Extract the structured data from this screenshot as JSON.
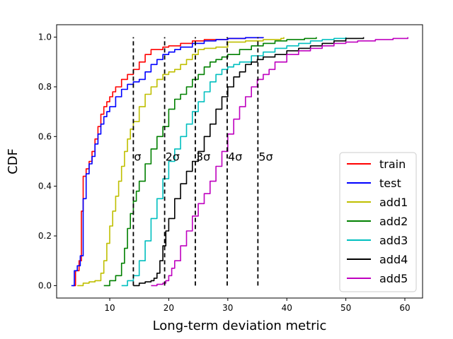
{
  "chart_data": {
    "type": "line",
    "title": "",
    "xlabel": "Long-term deviation metric",
    "ylabel": "CDF",
    "xlim": [
      1.0,
      63.0
    ],
    "ylim": [
      -0.05,
      1.05
    ],
    "x_ticks": [
      10,
      20,
      30,
      40,
      50,
      60
    ],
    "y_ticks": [
      0.0,
      0.2,
      0.4,
      0.6,
      0.8,
      1.0
    ],
    "x_tick_labels": [
      "10",
      "20",
      "30",
      "40",
      "50",
      "60"
    ],
    "y_tick_labels": [
      "0.0",
      "0.2",
      "0.4",
      "0.6",
      "0.8",
      "1.0"
    ],
    "grid": false,
    "legend_position": "lower-right",
    "thresholds": [
      {
        "x": 14.0,
        "label": "σ"
      },
      {
        "x": 19.3,
        "label": "2σ"
      },
      {
        "x": 24.5,
        "label": "3σ"
      },
      {
        "x": 29.9,
        "label": "4σ"
      },
      {
        "x": 35.1,
        "label": "5σ"
      }
    ],
    "threshold_label_y": 0.52,
    "series": [
      {
        "name": "train",
        "color": "#ff0000",
        "x": [
          3.8,
          4.2,
          4.8,
          5.2,
          5.5,
          6.0,
          6.5,
          7.0,
          7.5,
          8.0,
          8.5,
          9.0,
          9.5,
          10.0,
          10.5,
          11.0,
          12.0,
          13.0,
          14.0,
          15.0,
          16.0,
          17.0,
          18.0,
          19.0,
          20.0,
          22.0,
          24.0,
          26.0,
          28.0,
          30.0,
          33.0,
          36.0
        ],
        "y": [
          0.0,
          0.06,
          0.1,
          0.3,
          0.44,
          0.47,
          0.5,
          0.54,
          0.59,
          0.64,
          0.69,
          0.72,
          0.74,
          0.76,
          0.78,
          0.8,
          0.83,
          0.85,
          0.87,
          0.9,
          0.93,
          0.95,
          0.95,
          0.96,
          0.965,
          0.975,
          0.985,
          0.99,
          0.99,
          0.995,
          0.998,
          1.0
        ]
      },
      {
        "name": "test",
        "color": "#0000ff",
        "x": [
          3.5,
          4.0,
          4.5,
          5.0,
          5.5,
          6.0,
          6.5,
          7.0,
          7.5,
          8.0,
          8.5,
          9.0,
          9.5,
          10.0,
          11.0,
          12.0,
          13.0,
          14.0,
          15.0,
          16.0,
          17.0,
          18.0,
          19.0,
          20.0,
          21.0,
          22.0,
          24.0,
          26.0,
          28.0,
          30.0,
          33.0,
          36.0
        ],
        "y": [
          0.0,
          0.06,
          0.08,
          0.12,
          0.35,
          0.45,
          0.49,
          0.52,
          0.57,
          0.61,
          0.65,
          0.68,
          0.7,
          0.72,
          0.76,
          0.79,
          0.81,
          0.82,
          0.83,
          0.86,
          0.89,
          0.91,
          0.93,
          0.94,
          0.95,
          0.96,
          0.975,
          0.985,
          0.99,
          0.995,
          0.998,
          1.0
        ]
      },
      {
        "name": "add1",
        "color": "#bfbf00",
        "x": [
          4.5,
          5.5,
          6.5,
          7.5,
          8.5,
          9.0,
          9.5,
          10.0,
          10.5,
          11.0,
          11.5,
          12.0,
          12.5,
          13.0,
          13.5,
          14.0,
          15.0,
          16.0,
          17.0,
          18.0,
          19.0,
          20.0,
          21.0,
          22.0,
          23.0,
          24.0,
          25.0,
          26.0,
          28.0,
          30.0,
          33.0,
          36.0,
          39.0,
          39.5
        ],
        "y": [
          0.0,
          0.01,
          0.015,
          0.02,
          0.05,
          0.1,
          0.17,
          0.24,
          0.3,
          0.36,
          0.42,
          0.48,
          0.54,
          0.59,
          0.63,
          0.66,
          0.72,
          0.77,
          0.8,
          0.83,
          0.85,
          0.86,
          0.87,
          0.89,
          0.91,
          0.93,
          0.95,
          0.955,
          0.96,
          0.98,
          0.985,
          0.99,
          0.995,
          1.0
        ]
      },
      {
        "name": "add2",
        "color": "#008000",
        "x": [
          9.0,
          10.0,
          11.0,
          12.0,
          12.5,
          13.0,
          13.5,
          14.0,
          14.5,
          15.0,
          16.0,
          17.0,
          18.0,
          19.0,
          20.0,
          21.0,
          22.0,
          23.0,
          24.0,
          25.0,
          26.0,
          27.0,
          28.0,
          29.0,
          30.0,
          32.0,
          34.0,
          36.0,
          38.0,
          40.0,
          43.0,
          45.0
        ],
        "y": [
          0.0,
          0.02,
          0.04,
          0.09,
          0.15,
          0.23,
          0.29,
          0.34,
          0.38,
          0.42,
          0.49,
          0.55,
          0.6,
          0.64,
          0.71,
          0.75,
          0.77,
          0.8,
          0.83,
          0.85,
          0.88,
          0.9,
          0.91,
          0.92,
          0.93,
          0.95,
          0.965,
          0.975,
          0.985,
          0.99,
          0.995,
          1.0
        ]
      },
      {
        "name": "add3",
        "color": "#00bfbf",
        "x": [
          12.0,
          13.0,
          14.0,
          15.0,
          16.0,
          17.0,
          18.0,
          19.0,
          20.0,
          21.0,
          22.0,
          23.0,
          24.0,
          25.0,
          26.0,
          27.0,
          28.0,
          29.0,
          30.0,
          31.0,
          32.0,
          34.0,
          36.0,
          38.0,
          40.0,
          42.0,
          44.0,
          46.0,
          48.0,
          50.0
        ],
        "y": [
          0.0,
          0.02,
          0.04,
          0.1,
          0.18,
          0.27,
          0.35,
          0.43,
          0.5,
          0.55,
          0.6,
          0.65,
          0.7,
          0.74,
          0.78,
          0.82,
          0.85,
          0.87,
          0.88,
          0.89,
          0.9,
          0.925,
          0.94,
          0.955,
          0.965,
          0.975,
          0.985,
          0.99,
          0.995,
          1.0
        ]
      },
      {
        "name": "add4",
        "color": "#000000",
        "x": [
          14.0,
          15.0,
          16.0,
          17.0,
          17.5,
          18.0,
          18.5,
          19.0,
          19.5,
          20.0,
          21.0,
          22.0,
          23.0,
          24.0,
          25.0,
          26.0,
          27.0,
          28.0,
          29.0,
          30.0,
          31.0,
          32.0,
          33.0,
          34.0,
          35.0,
          36.0,
          38.0,
          40.0,
          42.0,
          44.0,
          46.0,
          48.0,
          50.0,
          53.0
        ],
        "y": [
          0.0,
          0.01,
          0.015,
          0.02,
          0.03,
          0.05,
          0.1,
          0.16,
          0.22,
          0.27,
          0.35,
          0.41,
          0.46,
          0.5,
          0.54,
          0.6,
          0.65,
          0.71,
          0.76,
          0.8,
          0.84,
          0.86,
          0.89,
          0.9,
          0.91,
          0.92,
          0.93,
          0.945,
          0.955,
          0.965,
          0.975,
          0.985,
          0.995,
          1.0
        ]
      },
      {
        "name": "add5",
        "color": "#bf00bf",
        "x": [
          17.0,
          18.0,
          19.0,
          19.5,
          20.0,
          20.5,
          21.0,
          22.0,
          23.0,
          24.0,
          25.0,
          26.0,
          27.0,
          28.0,
          29.0,
          30.0,
          31.0,
          32.0,
          33.0,
          34.0,
          35.0,
          36.0,
          37.0,
          38.0,
          40.0,
          42.0,
          44.0,
          46.0,
          48.0,
          50.0,
          52.0,
          55.0,
          58.0,
          60.5
        ],
        "y": [
          0.0,
          0.005,
          0.01,
          0.02,
          0.04,
          0.07,
          0.1,
          0.16,
          0.22,
          0.28,
          0.33,
          0.37,
          0.42,
          0.48,
          0.54,
          0.61,
          0.67,
          0.72,
          0.76,
          0.8,
          0.83,
          0.85,
          0.87,
          0.9,
          0.93,
          0.945,
          0.955,
          0.965,
          0.975,
          0.98,
          0.985,
          0.99,
          0.995,
          1.0
        ]
      }
    ]
  }
}
